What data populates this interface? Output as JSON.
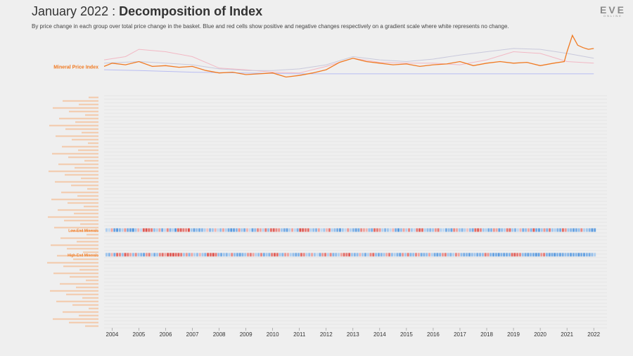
{
  "header": {
    "title_thin": "January 2022 : ",
    "title_bold": "Decomposition of Index",
    "subtitle": "By price change in each group over total price change in the basket. Blue and red cells show positive and negative changes respectively on a gradient scale where white represents no change.",
    "logo_main": "EVE",
    "logo_sub": "ONLINE"
  },
  "colors": {
    "index_line": "#f07a22",
    "positive": "#3a87d8",
    "negative": "#d9413a",
    "neutral": "#ffffff",
    "faint_label": "#f3c8a8",
    "grid": "#dddddd"
  },
  "chart_data": {
    "type": "heatmap",
    "title": "Decomposition of Index",
    "x_range": [
      2003.7,
      2022.1
    ],
    "x_ticks": [
      "2004",
      "2005",
      "2006",
      "2007",
      "2008",
      "2009",
      "2010",
      "2011",
      "2012",
      "2013",
      "2014",
      "2015",
      "2016",
      "2017",
      "2018",
      "2019",
      "2020",
      "2021",
      "2022"
    ],
    "line_series": {
      "name": "Mineral Price Index",
      "x": [
        2003.7,
        2004.0,
        2004.5,
        2005.0,
        2005.5,
        2006.0,
        2006.5,
        2007.0,
        2007.5,
        2008.0,
        2008.5,
        2009.0,
        2009.5,
        2010.0,
        2010.5,
        2011.0,
        2011.5,
        2012.0,
        2012.5,
        2013.0,
        2013.5,
        2014.0,
        2014.5,
        2015.0,
        2015.5,
        2016.0,
        2016.5,
        2017.0,
        2017.5,
        2018.0,
        2018.5,
        2019.0,
        2019.5,
        2020.0,
        2020.5,
        2020.9,
        2021.0,
        2021.2,
        2021.4,
        2021.6,
        2021.8,
        2022.0
      ],
      "values": [
        100,
        104,
        102,
        106,
        100,
        101,
        99,
        100,
        95,
        92,
        93,
        90,
        91,
        92,
        87,
        89,
        92,
        96,
        105,
        110,
        106,
        104,
        102,
        103,
        100,
        102,
        103,
        106,
        101,
        104,
        106,
        104,
        105,
        101,
        104,
        106,
        118,
        138,
        126,
        123,
        121,
        122
      ]
    },
    "context_series": [
      {
        "x": [
          2003.7,
          2004.5,
          2005.0,
          2006.0,
          2007.0,
          2008.0,
          2009.0,
          2010.0,
          2011.0,
          2012.0,
          2013.0,
          2014.0,
          2015.0,
          2016.0,
          2017.0,
          2018.0,
          2019.0,
          2020.0,
          2021.0,
          2022.0
        ],
        "values": [
          108,
          112,
          121,
          118,
          112,
          98,
          96,
          93,
          92,
          100,
          110,
          105,
          104,
          104,
          102,
          108,
          118,
          116,
          106,
          104
        ]
      },
      {
        "x": [
          2003.7,
          2005.0,
          2006.0,
          2007.0,
          2008.0,
          2009.0,
          2010.0,
          2011.0,
          2012.0,
          2013.0,
          2014.0,
          2015.0,
          2016.0,
          2017.0,
          2018.0,
          2019.0,
          2020.0,
          2021.0,
          2022.0
        ],
        "values": [
          104,
          106,
          104,
          102,
          97,
          95,
          95,
          97,
          102,
          112,
          108,
          106,
          109,
          114,
          118,
          122,
          121,
          116,
          110
        ]
      },
      {
        "x": [
          2003.7,
          2005.0,
          2007.0,
          2009.0,
          2011.0,
          2013.0,
          2015.0,
          2017.0,
          2019.0,
          2021.0,
          2022.0
        ],
        "values": [
          96,
          95,
          93,
          92,
          91,
          91,
          91,
          91,
          91,
          91,
          91
        ]
      }
    ],
    "rows": [
      {
        "name": "Low-End Minerals",
        "values": [
          0.2,
          0.1,
          -0.3,
          0.7,
          0.8,
          0.5,
          0.2,
          -0.4,
          0.6,
          0.7,
          0.9,
          0.3,
          -0.2,
          0.1,
          -0.8,
          -0.9,
          -0.7,
          -0.6,
          0.4,
          0.2,
          -0.3,
          0.6,
          0.1,
          -0.5,
          0.5,
          0.2,
          0.8,
          -0.7,
          -0.8,
          -0.6,
          -0.5,
          -0.9,
          0.3,
          0.7,
          0.4,
          0.6,
          0.5,
          0.2,
          -0.1,
          0.5,
          0.3,
          -0.2,
          0.1,
          0.4,
          -0.3,
          0.2,
          0.6,
          0.8,
          0.7,
          0.5,
          -0.4,
          0.3,
          0.6,
          -0.2,
          0.1,
          0.7,
          0.4,
          -0.5,
          -0.3,
          0.2,
          -0.6,
          0.4,
          -0.7,
          -0.8,
          -0.5,
          -0.4,
          0.3,
          0.6,
          0.7,
          0.2,
          -0.3,
          0.1,
          0.5,
          -0.9,
          -0.8,
          -0.6,
          -0.7,
          0.2,
          0.4,
          0.5,
          -0.3,
          0.1,
          0.3,
          -0.2,
          -0.6,
          0.2,
          0.4,
          0.6,
          0.8,
          0.3,
          0.1,
          -0.4,
          0.2,
          0.5,
          0.7,
          0.6,
          -0.5,
          -0.3,
          -0.2,
          0.4,
          0.6,
          -0.7,
          -0.6,
          -0.4,
          0.2,
          0.5,
          0.3,
          0.1,
          -0.2,
          0.6,
          0.8,
          0.4,
          -0.3,
          0.2,
          -0.5,
          0.3,
          0.1,
          -0.6,
          -0.8,
          -0.7,
          0.2,
          0.4,
          0.5,
          0.3,
          -0.4,
          -0.6,
          0.2,
          0.1,
          0.6,
          0.4,
          0.7,
          -0.5,
          -0.3,
          0.3,
          0.5,
          0.2,
          -0.1,
          0.4,
          0.6,
          -0.7,
          -0.8,
          -0.5,
          0.3,
          0.2,
          0.6,
          0.5,
          -0.4,
          -0.3,
          0.7,
          0.4,
          0.2,
          -0.6,
          -0.7,
          0.3,
          0.5,
          0.1,
          -0.2,
          0.6,
          0.4,
          -0.3,
          0.5,
          -0.8,
          0.6,
          0.7,
          0.3,
          -0.4,
          0.5,
          -0.6,
          0.3,
          0.2,
          0.5,
          0.6,
          -0.7,
          -0.4,
          0.3,
          0.5,
          0.7,
          0.6,
          0.4,
          -0.5,
          0.2,
          0.3,
          0.5,
          0.8,
          0.7
        ]
      },
      {
        "name": "High-End Minerals",
        "values": [
          0.3,
          0.5,
          -0.2,
          0.6,
          -0.7,
          -0.5,
          0.4,
          -0.8,
          -0.6,
          -0.3,
          0.4,
          -0.5,
          0.3,
          0.5,
          0.7,
          -0.4,
          -0.6,
          0.2,
          0.6,
          0.3,
          -0.5,
          -0.7,
          -0.3,
          -0.9,
          -0.8,
          -0.9,
          -0.7,
          -0.8,
          -0.6,
          0.3,
          -0.4,
          0.5,
          -0.3,
          0.2,
          0.4,
          -0.2,
          0.3,
          0.5,
          -0.8,
          -0.7,
          -0.9,
          -0.6,
          0.4,
          0.6,
          0.3,
          0.5,
          0.2,
          -0.5,
          0.4,
          0.6,
          0.7,
          0.5,
          0.3,
          -0.4,
          -0.6,
          -0.3,
          0.2,
          0.4,
          -0.5,
          0.6,
          0.3,
          0.5,
          -0.6,
          -0.8,
          -0.7,
          0.3,
          0.5,
          -0.4,
          -0.3,
          0.2,
          0.4,
          0.6,
          0.5,
          -0.7,
          -0.5,
          0.2,
          0.4,
          -0.3,
          0.3,
          0.1,
          0.6,
          -0.4,
          -0.6,
          0.2,
          -0.5,
          0.5,
          0.4,
          0.2,
          -0.3,
          -0.7,
          -0.6,
          -0.8,
          0.3,
          0.5,
          0.4,
          -0.2,
          0.3,
          0.6,
          0.2,
          -0.5,
          -0.7,
          0.4,
          0.6,
          0.5,
          0.3,
          -0.3,
          -0.6,
          0.4,
          0.2,
          0.5,
          0.7,
          -0.4,
          0.3,
          -0.6,
          0.5,
          0.4,
          -0.5,
          -0.3,
          0.6,
          0.5,
          0.4,
          -0.3,
          0.2,
          0.6,
          0.7,
          0.5,
          -0.4,
          -0.6,
          0.3,
          0.5,
          0.2,
          -0.5,
          -0.3,
          0.4,
          0.6,
          0.5,
          0.7,
          0.4,
          0.3,
          0.6,
          0.5,
          0.4,
          -0.6,
          -0.4,
          0.5,
          0.7,
          0.6,
          0.8,
          0.5,
          0.7,
          0.6,
          0.5,
          -0.7,
          -0.8,
          -0.6,
          -0.5,
          0.4,
          0.6,
          0.7,
          0.5,
          0.6,
          0.8,
          0.7,
          -0.4,
          -0.6,
          0.5,
          0.7,
          0.6,
          0.8,
          0.5,
          0.7,
          0.6,
          0.4,
          0.5,
          0.7,
          0.6,
          0.5,
          0.8,
          0.6,
          0.7,
          0.5,
          0.6,
          0.4,
          0.2
        ]
      }
    ],
    "legend": "none"
  }
}
